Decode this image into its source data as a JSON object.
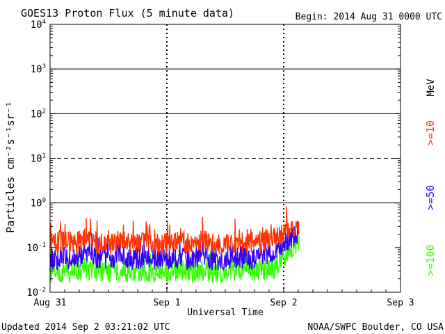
{
  "header": {
    "title": "GOES13 Proton Flux (5 minute data)",
    "begin": "Begin: 2014 Aug 31 0000 UTC"
  },
  "footer": {
    "updated": "Updated 2014 Sep  2 03:21:02 UTC",
    "credit": "NOAA/SWPC Boulder, CO USA"
  },
  "legend": {
    "unit": "MeV",
    "entries": [
      {
        "label": ">=10",
        "color": "#ff3300"
      },
      {
        "label": ">=50",
        "color": "#3300ff"
      },
      {
        "label": ">=100",
        "color": "#33ff00"
      }
    ]
  },
  "chart_data": {
    "type": "line",
    "title": "GOES13 Proton Flux (5 minute data)",
    "xlabel": "Universal Time",
    "ylabel": "Particles cm⁻²s⁻¹sr⁻¹",
    "yscale": "log",
    "ylim": [
      0.01,
      10000
    ],
    "xlim_days": [
      0,
      3
    ],
    "x_ticks": [
      {
        "day": 0,
        "label": "Aug 31"
      },
      {
        "day": 1,
        "label": "Sep 1"
      },
      {
        "day": 2,
        "label": "Sep 2"
      },
      {
        "day": 3,
        "label": "Sep 3"
      }
    ],
    "y_ticks": [
      {
        "value": 0.01,
        "base": "10",
        "exp": "-2"
      },
      {
        "value": 0.1,
        "base": "10",
        "exp": "-1"
      },
      {
        "value": 1,
        "base": "10",
        "exp": "0"
      },
      {
        "value": 10,
        "base": "10",
        "exp": "1"
      },
      {
        "value": 100,
        "base": "10",
        "exp": "2"
      },
      {
        "value": 1000,
        "base": "10",
        "exp": "3"
      },
      {
        "value": 10000,
        "base": "10",
        "exp": "4"
      }
    ],
    "thresholds": [
      {
        "value": 1,
        "style": "solid"
      },
      {
        "value": 10,
        "style": "dashed"
      },
      {
        "value": 100,
        "style": "solid"
      },
      {
        "value": 1000,
        "style": "solid"
      }
    ],
    "series": [
      {
        "name": ">=10 MeV",
        "color": "#ff3300",
        "x": [
          0,
          0.1,
          0.2,
          0.3,
          0.4,
          0.5,
          0.6,
          0.7,
          0.8,
          0.9,
          1.0,
          1.1,
          1.2,
          1.3,
          1.4,
          1.5,
          1.6,
          1.7,
          1.8,
          1.9,
          2.0,
          2.05,
          2.1,
          2.135
        ],
        "y": [
          0.12,
          0.14,
          0.12,
          0.16,
          0.13,
          0.12,
          0.15,
          0.12,
          0.14,
          0.12,
          0.12,
          0.13,
          0.12,
          0.14,
          0.12,
          0.12,
          0.13,
          0.12,
          0.14,
          0.16,
          0.22,
          0.28,
          0.32,
          0.3
        ]
      },
      {
        "name": ">=50 MeV",
        "color": "#3300ff",
        "x": [
          0,
          0.1,
          0.2,
          0.3,
          0.4,
          0.5,
          0.6,
          0.7,
          0.8,
          0.9,
          1.0,
          1.1,
          1.2,
          1.3,
          1.4,
          1.5,
          1.6,
          1.7,
          1.8,
          1.9,
          2.0,
          2.05,
          2.1,
          2.135
        ],
        "y": [
          0.05,
          0.06,
          0.055,
          0.07,
          0.06,
          0.055,
          0.065,
          0.055,
          0.06,
          0.055,
          0.055,
          0.06,
          0.055,
          0.065,
          0.055,
          0.055,
          0.06,
          0.055,
          0.065,
          0.08,
          0.12,
          0.16,
          0.2,
          0.22
        ]
      },
      {
        "name": ">=100 MeV",
        "color": "#33ff00",
        "x": [
          0,
          0.1,
          0.2,
          0.3,
          0.4,
          0.5,
          0.6,
          0.7,
          0.8,
          0.9,
          1.0,
          1.1,
          1.2,
          1.3,
          1.4,
          1.5,
          1.6,
          1.7,
          1.8,
          1.9,
          2.0,
          2.05,
          2.1,
          2.135
        ],
        "y": [
          0.025,
          0.03,
          0.028,
          0.035,
          0.03,
          0.028,
          0.033,
          0.028,
          0.03,
          0.028,
          0.028,
          0.03,
          0.028,
          0.032,
          0.028,
          0.028,
          0.03,
          0.028,
          0.032,
          0.03,
          0.06,
          0.08,
          0.11,
          0.13
        ]
      }
    ]
  }
}
